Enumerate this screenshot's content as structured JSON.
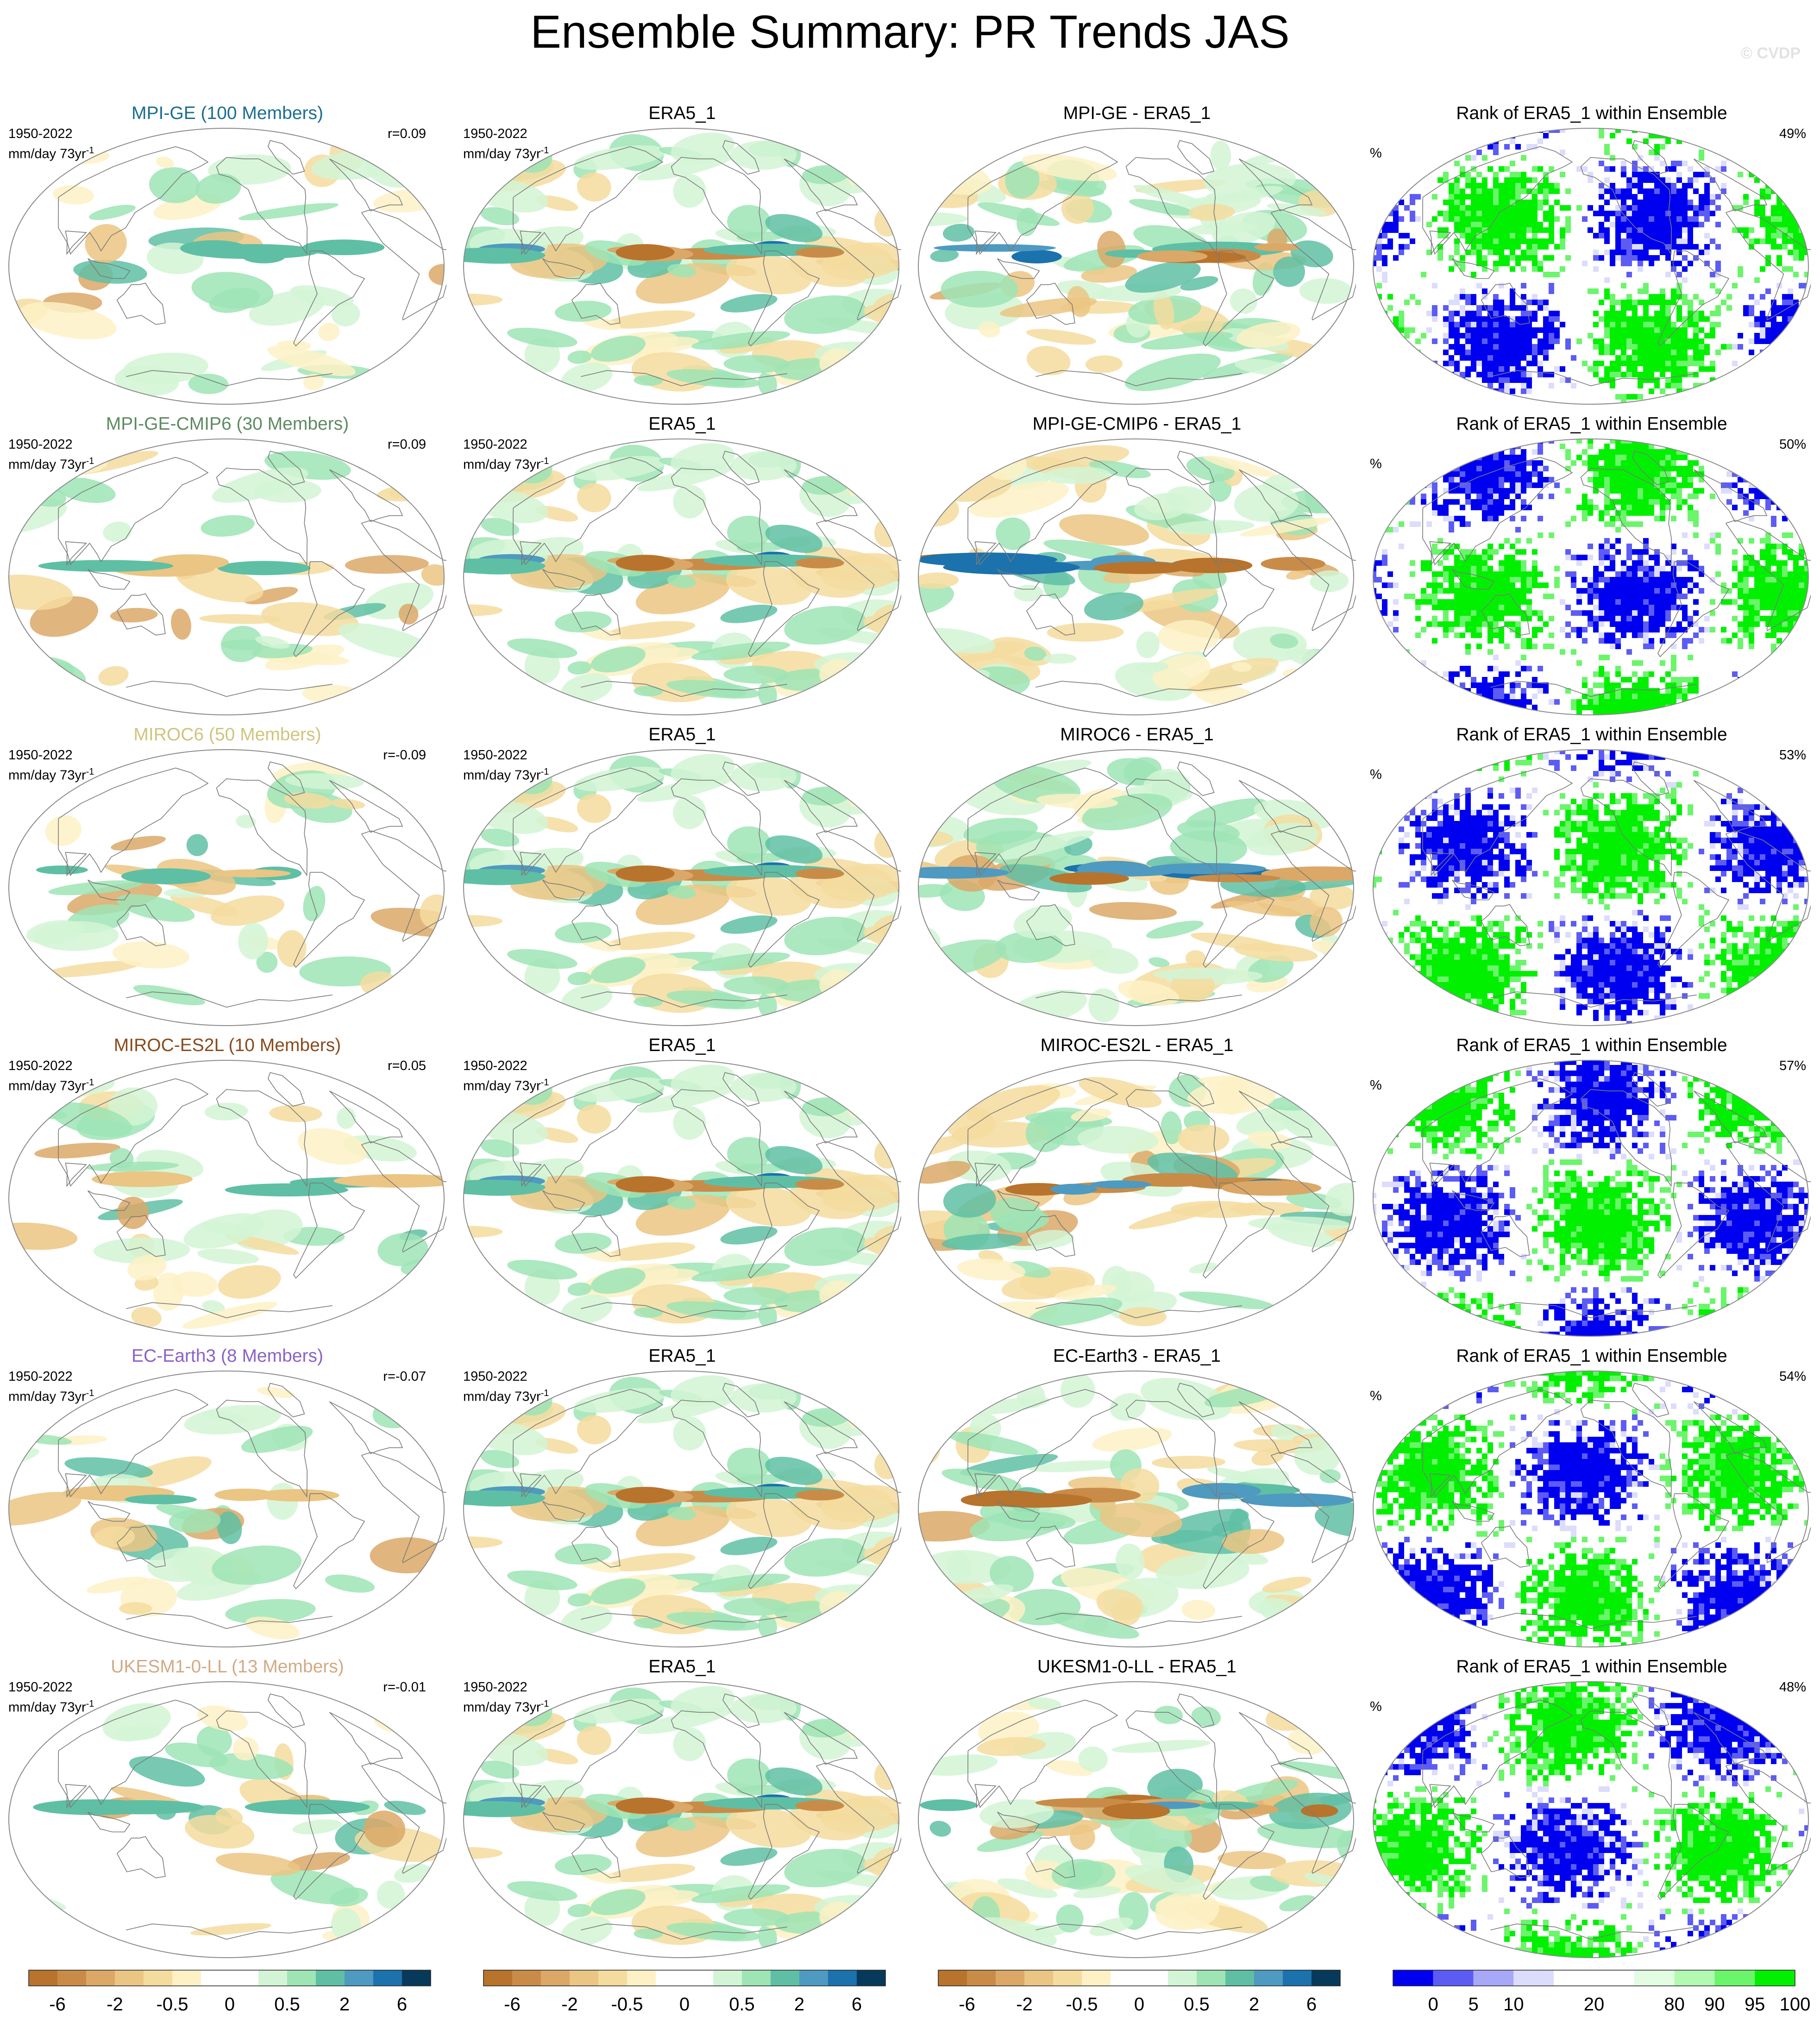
{
  "title": "Ensemble Summary: PR Trends JAS",
  "watermark": "© CVDP",
  "labels": {
    "period": "1950-2022",
    "units_base": "mm/day 73yr",
    "units_exp": "-1",
    "percent": "%"
  },
  "rows": [
    {
      "model": "MPI-GE",
      "members": "MPI-GE (100 Members)",
      "color": "#1a6e8e",
      "r": "r=0.09",
      "diff": "MPI-GE - ERA5_1",
      "rank_pct": "49%"
    },
    {
      "model": "MPI-GE-CMIP6",
      "members": "MPI-GE-CMIP6 (30 Members)",
      "color": "#5e8a62",
      "r": "r=0.09",
      "diff": "MPI-GE-CMIP6 - ERA5_1",
      "rank_pct": "50%"
    },
    {
      "model": "MIROC6",
      "members": "MIROC6 (50 Members)",
      "color": "#cfc47e",
      "r": "r=-0.09",
      "diff": "MIROC6 - ERA5_1",
      "rank_pct": "53%"
    },
    {
      "model": "MIROC-ES2L",
      "members": "MIROC-ES2L (10 Members)",
      "color": "#8a4a1c",
      "r": "r=0.05",
      "diff": "MIROC-ES2L - ERA5_1",
      "rank_pct": "57%"
    },
    {
      "model": "EC-Earth3",
      "members": "EC-Earth3 (8 Members)",
      "color": "#8a62c8",
      "r": "r=-0.07",
      "diff": "EC-Earth3 - ERA5_1",
      "rank_pct": "54%"
    },
    {
      "model": "UKESM1-0-LL",
      "members": "UKESM1-0-LL (13 Members)",
      "color": "#d2aa84",
      "r": "r=-0.01",
      "diff": "UKESM1-0-LL - ERA5_1",
      "rank_pct": "48%"
    }
  ],
  "obs_title": "ERA5_1",
  "rank_title": "Rank of ERA5_1 within Ensemble",
  "chart_data": {
    "type": "heatmap",
    "projection": "global (Robinson-like)",
    "trend_colorbar": {
      "colors": [
        "#b8732c",
        "#c98c48",
        "#dba867",
        "#ebc583",
        "#f4dc9f",
        "#fdf1c5",
        "#ffffff",
        "#ffffff",
        "#d2f5d5",
        "#9ee4b5",
        "#5fbfa4",
        "#4e9ac0",
        "#1b72ac",
        "#073a5a"
      ],
      "tick_labels": [
        "-6",
        "-2",
        "-0.5",
        "0",
        "0.5",
        "2",
        "6"
      ]
    },
    "rank_colorbar": {
      "colors": [
        "#0000f0",
        "#5c5cf5",
        "#a8a8f8",
        "#dcdcfc",
        "#ffffff",
        "#ffffff",
        "#e2fde2",
        "#b2f9b2",
        "#6af56a",
        "#00f000"
      ],
      "tick_labels": [
        "0",
        "5",
        "10",
        "20",
        "80",
        "90",
        "95",
        "100"
      ]
    }
  }
}
